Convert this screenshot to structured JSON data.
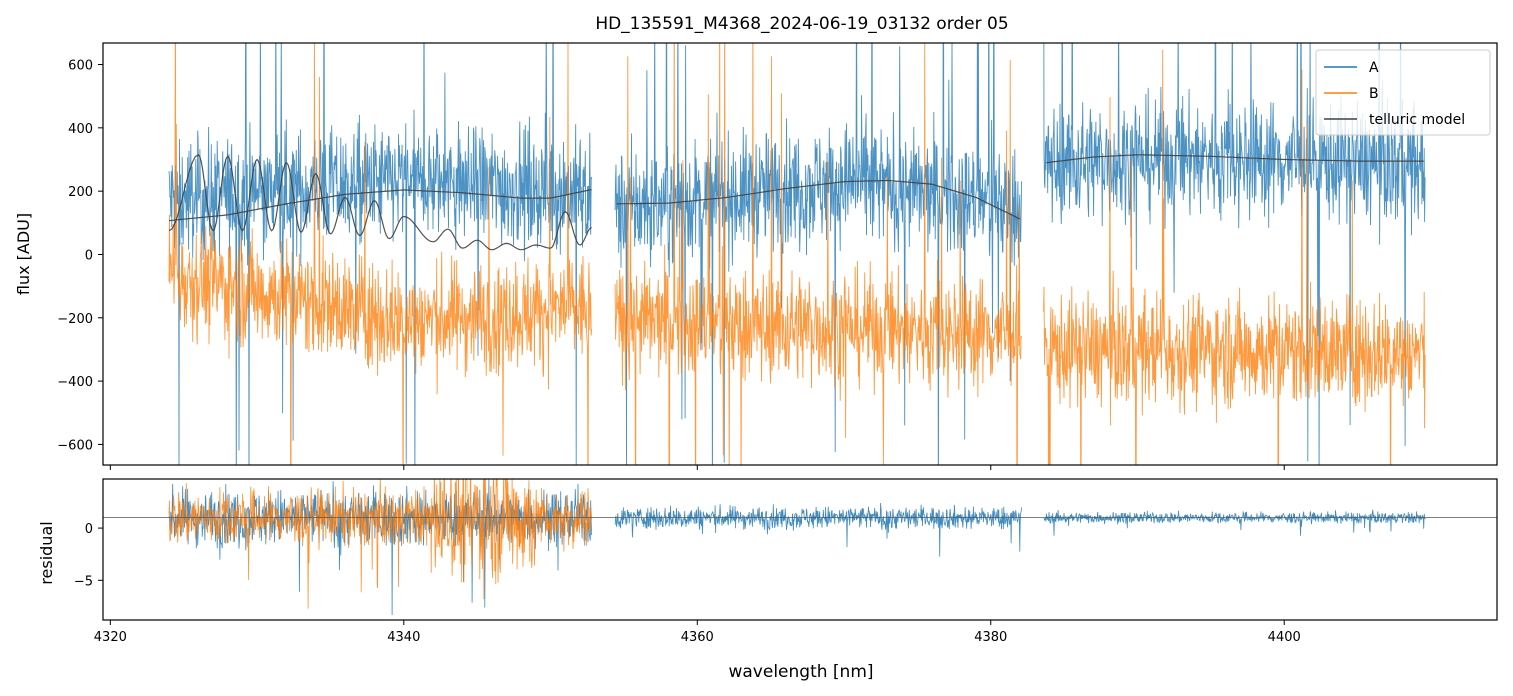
{
  "chart_data": [
    {
      "type": "line",
      "title": "HD_135591_M4368_2024-06-19_03132  order 05",
      "xlabel": "",
      "ylabel": "flux [ADU]",
      "xlim": [
        4319.5,
        4414.5
      ],
      "ylim": [
        -665,
        668
      ],
      "x_ticks": [
        4320,
        4340,
        4360,
        4380,
        4400
      ],
      "y_ticks": [
        -600,
        -400,
        -200,
        0,
        200,
        400,
        600
      ],
      "y_tick_labels": [
        "−600",
        "−400",
        "−200",
        "0",
        "200",
        "400",
        "600"
      ],
      "legend_position": "top-right",
      "segments": [
        {
          "x0": 4324.0,
          "x1": 4352.8
        },
        {
          "x0": 4354.4,
          "x1": 4382.1
        },
        {
          "x0": 4383.6,
          "x1": 4409.6
        }
      ],
      "series": [
        {
          "name": "A",
          "color": "#1f77b4",
          "description": "noisy spectrum",
          "approx_level": [
            [
              4324,
              170
            ],
            [
              4340,
              230
            ],
            [
              4352,
              200
            ],
            [
              4354.5,
              140
            ],
            [
              4370,
              230
            ],
            [
              4382,
              150
            ],
            [
              4384,
              290
            ],
            [
              4395,
              310
            ],
            [
              4409.5,
              280
            ]
          ],
          "approx_spread": 170
        },
        {
          "name": "B",
          "color": "#ff7f0e",
          "description": "noisy spectrum",
          "approx_level": [
            [
              4324,
              -60
            ],
            [
              4340,
              -210
            ],
            [
              4352,
              -170
            ],
            [
              4354.5,
              -210
            ],
            [
              4370,
              -230
            ],
            [
              4382,
              -250
            ],
            [
              4384,
              -300
            ],
            [
              4395,
              -300
            ],
            [
              4409.5,
              -310
            ]
          ],
          "approx_spread": 160
        },
        {
          "name": "telluric model",
          "color": "#404040",
          "smooth_segments": [
            [
              [
                4324,
                107
              ],
              [
                4328,
                125
              ],
              [
                4332,
                160
              ],
              [
                4336,
                190
              ],
              [
                4340,
                204
              ],
              [
                4344,
                195
              ],
              [
                4348,
                178
              ],
              [
                4350,
                178
              ],
              [
                4352.8,
                205
              ]
            ],
            [
              [
                4354.5,
                160
              ],
              [
                4358,
                162
              ],
              [
                4362,
                180
              ],
              [
                4366,
                208
              ],
              [
                4370,
                230
              ],
              [
                4373,
                234
              ],
              [
                4376,
                222
              ],
              [
                4379,
                180
              ],
              [
                4382,
                112
              ]
            ],
            [
              [
                4383.8,
                290
              ],
              [
                4387,
                308
              ],
              [
                4390,
                315
              ],
              [
                4395,
                310
              ],
              [
                4400,
                300
              ],
              [
                4405,
                295
              ],
              [
                4409.5,
                295
              ]
            ]
          ],
          "oscillating_part": [
            [
              4324,
              75
            ],
            [
              4326,
              315
            ],
            [
              4327,
              75
            ],
            [
              4328,
              310
            ],
            [
              4329,
              75
            ],
            [
              4330,
              300
            ],
            [
              4331,
              75
            ],
            [
              4332,
              290
            ],
            [
              4333,
              70
            ],
            [
              4334,
              255
            ],
            [
              4335,
              65
            ],
            [
              4336,
              180
            ],
            [
              4337,
              60
            ],
            [
              4338,
              170
            ],
            [
              4339,
              50
            ],
            [
              4340,
              120
            ],
            [
              4342,
              40
            ],
            [
              4343,
              80
            ],
            [
              4344,
              20
            ],
            [
              4345,
              45
            ],
            [
              4346,
              15
            ],
            [
              4347,
              35
            ],
            [
              4348,
              15
            ],
            [
              4349,
              30
            ],
            [
              4350,
              20
            ],
            [
              4351,
              135
            ],
            [
              4352,
              30
            ],
            [
              4352.8,
              85
            ]
          ]
        }
      ]
    },
    {
      "type": "line",
      "title": "",
      "xlabel": "wavelength [nm]",
      "ylabel": "residual",
      "xlim": [
        4319.5,
        4414.5
      ],
      "ylim": [
        -8.8,
        4.7
      ],
      "x_ticks": [
        4320,
        4340,
        4360,
        4380,
        4400
      ],
      "x_tick_labels": [
        "4320",
        "4340",
        "4360",
        "4380",
        "4400"
      ],
      "y_ticks": [
        -5,
        0
      ],
      "y_tick_labels": [
        "−5",
        "0"
      ],
      "reference_line": 1,
      "series": [
        {
          "name": "A",
          "color": "#1f77b4",
          "approx_spread_by_segment": [
            3.0,
            1.2,
            0.6
          ]
        },
        {
          "name": "B",
          "color": "#ff7f0e",
          "approx_spread_by_segment": [
            3.0,
            0,
            0
          ]
        }
      ]
    }
  ]
}
